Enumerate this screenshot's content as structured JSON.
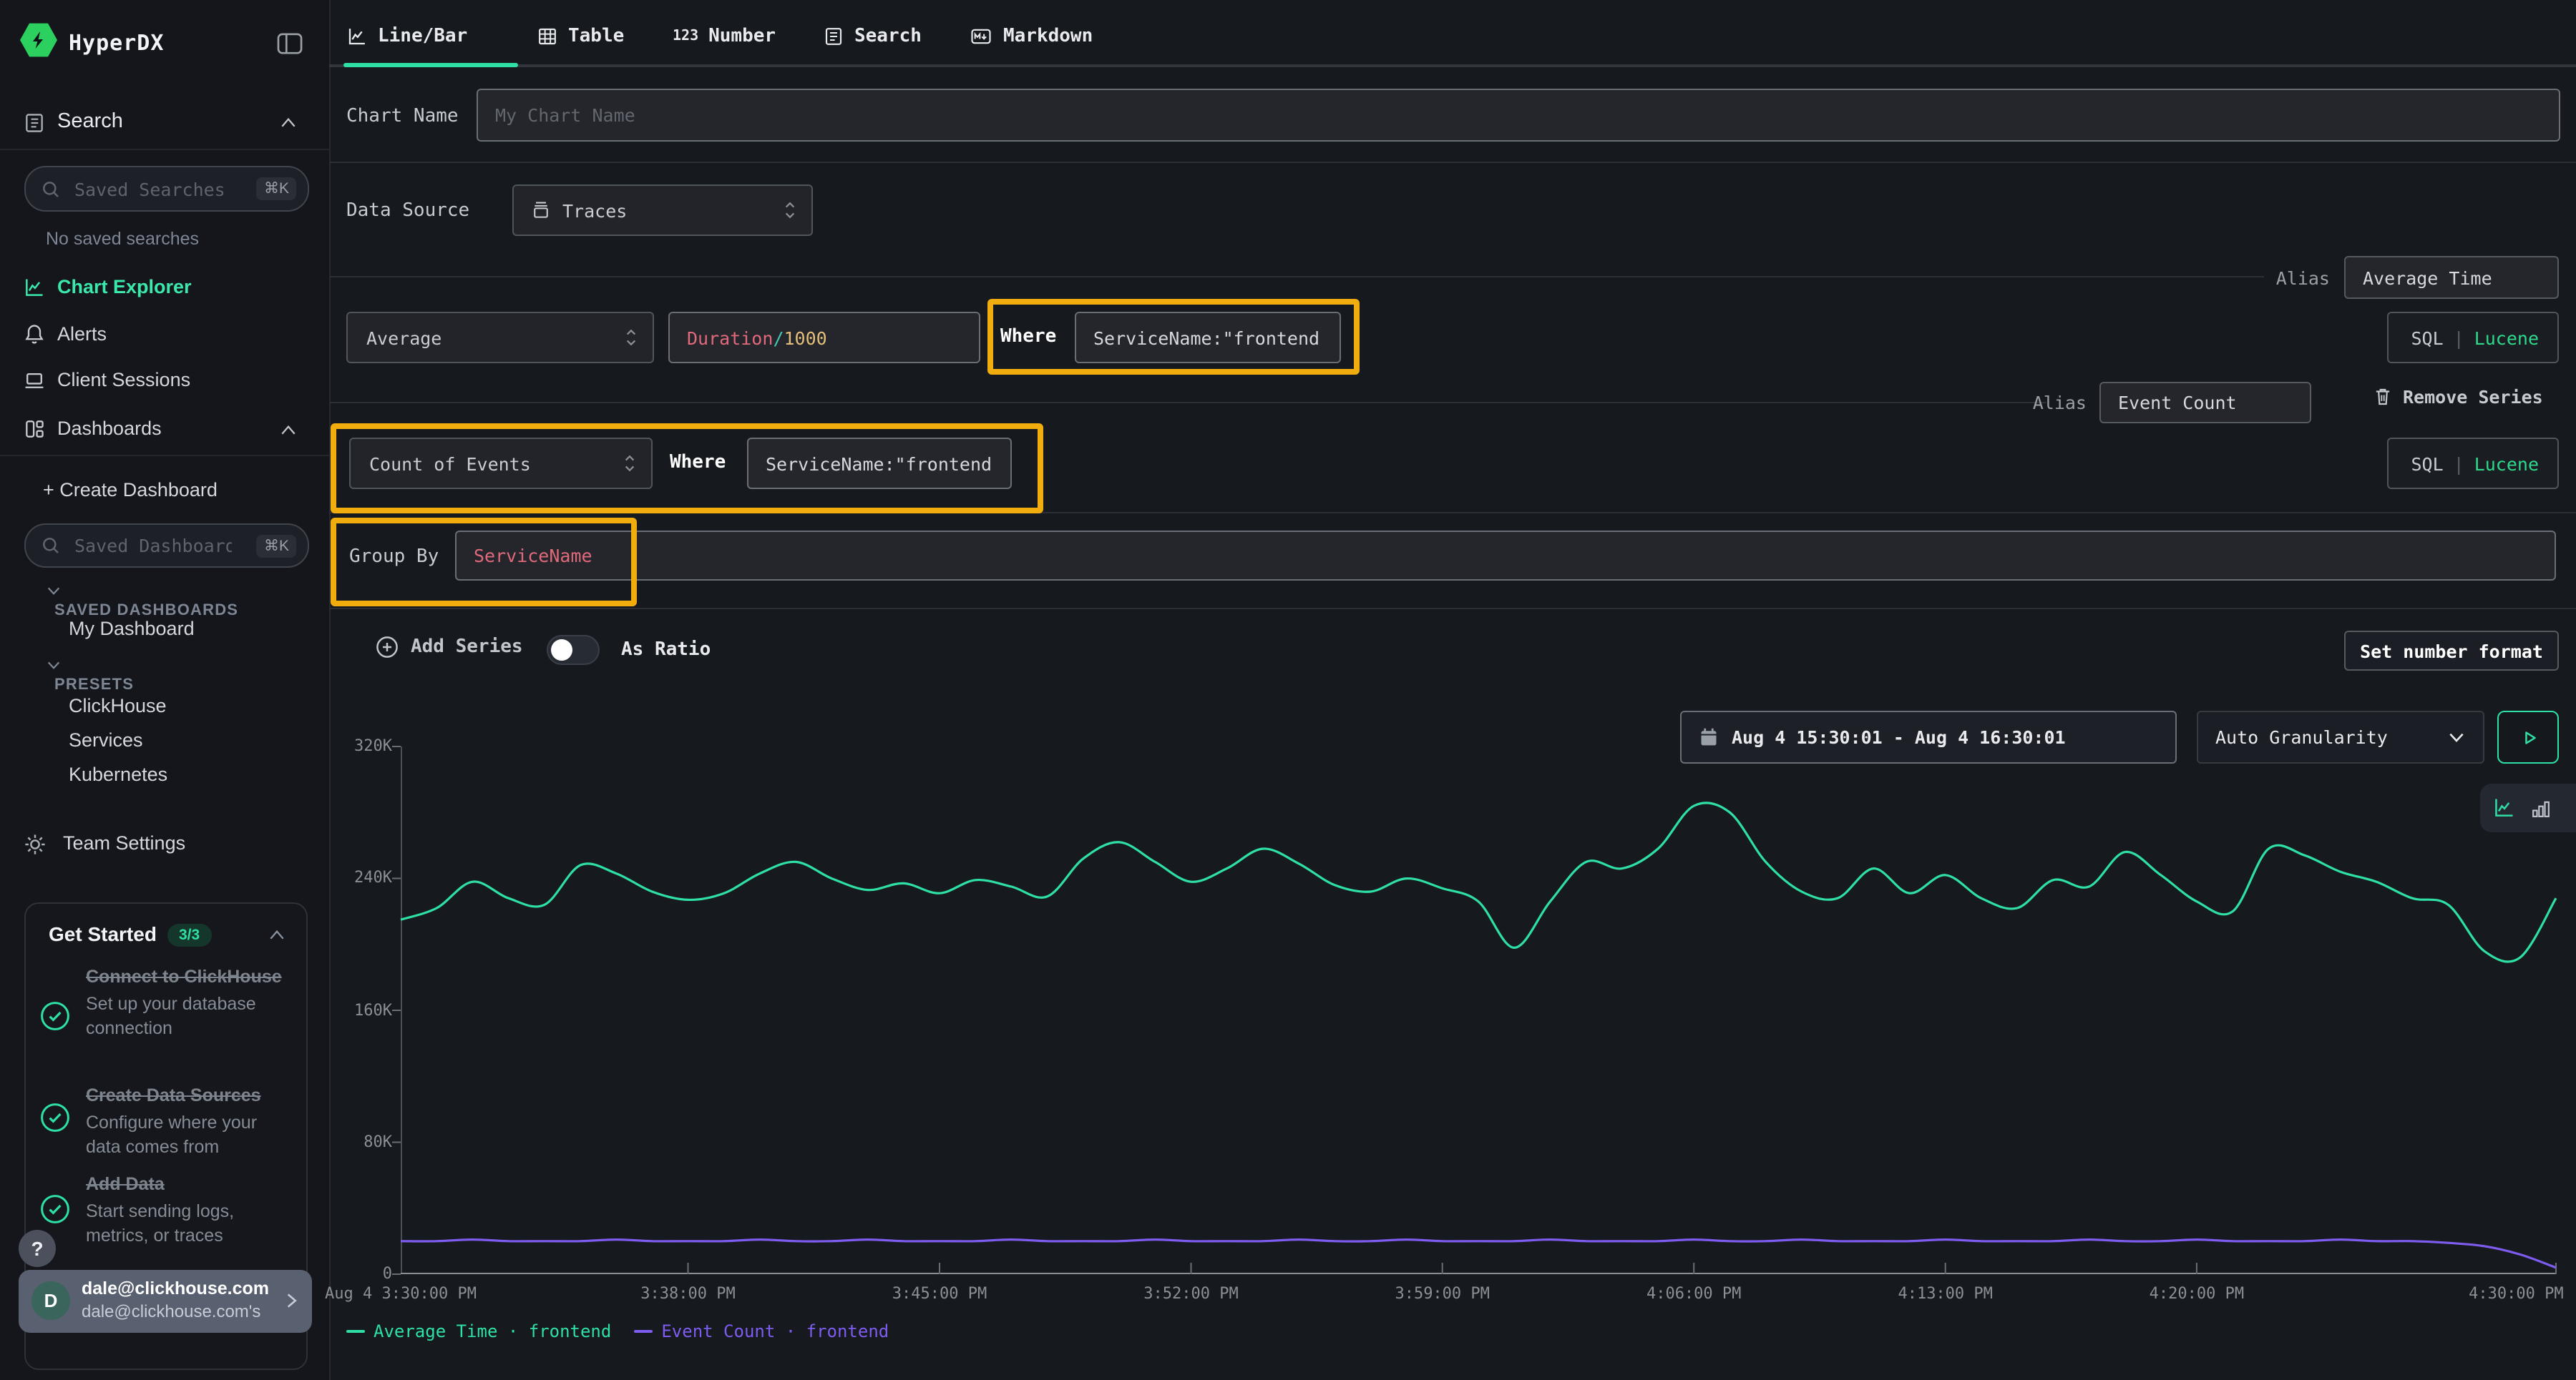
{
  "brand": {
    "name": "HyperDX"
  },
  "sidebar": {
    "search_section": "Search",
    "saved_searches_placeholder": "Saved Searches",
    "shortcut": "⌘K",
    "no_saved_searches": "No saved searches",
    "nav": {
      "chart_explorer": "Chart Explorer",
      "alerts": "Alerts",
      "client_sessions": "Client Sessions",
      "dashboards": "Dashboards"
    },
    "create_dashboard": "+ Create Dashboard",
    "saved_dashboards_placeholder": "Saved Dashboards",
    "sections": {
      "saved_dashboards": "SAVED DASHBOARDS",
      "presets": "PRESETS"
    },
    "my_dashboard": "My Dashboard",
    "presets": [
      "ClickHouse",
      "Services",
      "Kubernetes"
    ],
    "team_settings": "Team Settings",
    "get_started": {
      "title": "Get Started",
      "badge": "3/3",
      "items": [
        {
          "title": "Connect to ClickHouse",
          "desc": "Set up your database connection"
        },
        {
          "title": "Create Data Sources",
          "desc": "Configure where your data comes from"
        },
        {
          "title": "Add Data",
          "desc": "Start sending logs, metrics, or traces"
        }
      ]
    },
    "help_label": "?",
    "user": {
      "initial": "D",
      "email": "dale@clickhouse.com",
      "subtitle": "dale@clickhouse.com's"
    }
  },
  "tabs": {
    "line_bar": "Line/Bar",
    "table": "Table",
    "number": "Number",
    "number_icon": "123",
    "search": "Search",
    "markdown": "Markdown"
  },
  "form": {
    "chart_name_label": "Chart Name",
    "chart_name_placeholder": "My Chart Name",
    "data_source_label": "Data Source",
    "data_source_value": "Traces",
    "alias_label": "Alias",
    "series1": {
      "alias": "Average Time",
      "aggregation": "Average",
      "field": "Duration",
      "field_op": "/",
      "field_num": "1000",
      "where_label": "Where",
      "where": "ServiceName:\"frontend\""
    },
    "series2": {
      "alias": "Event Count",
      "aggregation": "Count of Events",
      "where_label": "Where",
      "where": "ServiceName:\"frontend\"",
      "remove": "Remove Series"
    },
    "language_toggle": {
      "sql": "SQL",
      "sep": "|",
      "lucene": "Lucene"
    },
    "group_by_label": "Group By",
    "group_by_value": "ServiceName",
    "add_series": "Add Series",
    "as_ratio": "As Ratio",
    "set_number_format": "Set number format"
  },
  "toolbar": {
    "date_range": "Aug 4 15:30:01 - Aug 4 16:30:01",
    "granularity": "Auto Granularity"
  },
  "colors": {
    "accent_green": "#2ee0a4",
    "series_purple": "#7e5cf0",
    "highlight_gold": "#f1ac0d"
  },
  "chart_data": {
    "type": "line",
    "unit": "K",
    "ylim": [
      0,
      320
    ],
    "grid": false,
    "legend_position": "bottom",
    "y_ticks": [
      {
        "label": "0",
        "value": 0
      },
      {
        "label": "80K",
        "value": 80
      },
      {
        "label": "160K",
        "value": 160
      },
      {
        "label": "240K",
        "value": 240
      },
      {
        "label": "320K",
        "value": 320
      }
    ],
    "x_ticks": [
      {
        "label": "Aug 4 3:30:00 PM",
        "pos": 0.0
      },
      {
        "label": "3:38:00 PM",
        "pos": 0.1333
      },
      {
        "label": "3:45:00 PM",
        "pos": 0.25
      },
      {
        "label": "3:52:00 PM",
        "pos": 0.3667
      },
      {
        "label": "3:59:00 PM",
        "pos": 0.4833
      },
      {
        "label": "4:06:00 PM",
        "pos": 0.6
      },
      {
        "label": "4:13:00 PM",
        "pos": 0.7167
      },
      {
        "label": "4:20:00 PM",
        "pos": 0.8333
      },
      {
        "label": "4:30:00 PM",
        "pos": 1.0
      }
    ],
    "series": [
      {
        "name": "Average Time · frontend",
        "color": "#2ee0a4",
        "values": [
          215,
          222,
          238,
          228,
          224,
          248,
          243,
          232,
          227,
          231,
          243,
          250,
          240,
          233,
          237,
          231,
          239,
          235,
          229,
          252,
          262,
          250,
          238,
          246,
          258,
          249,
          236,
          232,
          240,
          234,
          226,
          198,
          226,
          250,
          246,
          258,
          284,
          280,
          250,
          232,
          228,
          246,
          231,
          242,
          228,
          222,
          239,
          235,
          256,
          242,
          226,
          220,
          258,
          254,
          244,
          238,
          228,
          224,
          196,
          192,
          228
        ]
      },
      {
        "name": "Event Count · frontend",
        "color": "#7e5cf0",
        "values": [
          20,
          20,
          21,
          20,
          20,
          20,
          21,
          20,
          20,
          20,
          21,
          20,
          20,
          21,
          20,
          20,
          20,
          21,
          20,
          20,
          20,
          21,
          20,
          20,
          20,
          21,
          20,
          20,
          21,
          20,
          20,
          20,
          21,
          20,
          20,
          20,
          21,
          20,
          20,
          21,
          20,
          20,
          20,
          21,
          20,
          20,
          20,
          21,
          20,
          20,
          21,
          20,
          20,
          20,
          21,
          20,
          20,
          19,
          17,
          12,
          4
        ]
      }
    ]
  }
}
